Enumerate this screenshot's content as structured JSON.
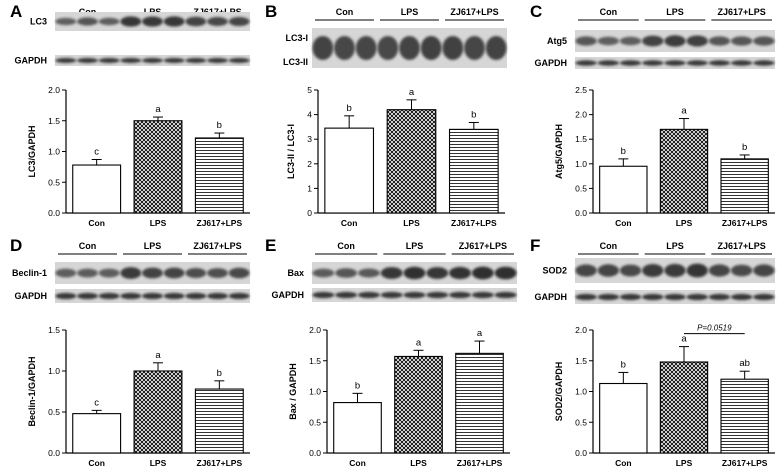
{
  "figure_title": "",
  "chart_data": [
    {
      "panel": "A",
      "type": "bar",
      "blot_rows": [
        "LC3",
        "GAPDH"
      ],
      "categories": [
        "Con",
        "LPS",
        "ZJ617+LPS"
      ],
      "values": [
        0.78,
        1.5,
        1.22
      ],
      "errors": [
        0.09,
        0.06,
        0.08
      ],
      "sig_letters": [
        "c",
        "a",
        "b"
      ],
      "ylabel": "LC3/GAPDH",
      "ylim": [
        0,
        2.0
      ],
      "yticks": [
        "0.0",
        "0.5",
        "1.0",
        "1.5",
        "2.0"
      ]
    },
    {
      "panel": "B",
      "type": "bar",
      "blot_rows": [
        "LC3-I",
        "LC3-II"
      ],
      "categories": [
        "Con",
        "LPS",
        "ZJ617+LPS"
      ],
      "values": [
        3.45,
        4.2,
        3.4
      ],
      "errors": [
        0.5,
        0.4,
        0.28
      ],
      "sig_letters": [
        "b",
        "a",
        "b"
      ],
      "ylabel": "LC3-II / LC3-I",
      "ylim": [
        0,
        5
      ],
      "yticks": [
        "0",
        "1",
        "2",
        "3",
        "4",
        "5"
      ]
    },
    {
      "panel": "C",
      "type": "bar",
      "blot_rows": [
        "Atg5",
        "GAPDH"
      ],
      "categories": [
        "Con",
        "LPS",
        "ZJ617+LPS"
      ],
      "values": [
        0.95,
        1.7,
        1.1
      ],
      "errors": [
        0.15,
        0.22,
        0.08
      ],
      "sig_letters": [
        "b",
        "a",
        "b"
      ],
      "ylabel": "Atg5/GAPDH",
      "ylim": [
        0,
        2.5
      ],
      "yticks": [
        "0.0",
        "0.5",
        "1.0",
        "1.5",
        "2.0",
        "2.5"
      ]
    },
    {
      "panel": "D",
      "type": "bar",
      "blot_rows": [
        "Beclin-1",
        "GAPDH"
      ],
      "categories": [
        "Con",
        "LPS",
        "ZJ617+LPS"
      ],
      "values": [
        0.48,
        1.0,
        0.78
      ],
      "errors": [
        0.04,
        0.1,
        0.1
      ],
      "sig_letters": [
        "c",
        "a",
        "b"
      ],
      "ylabel": "Beclin-1/GAPDH",
      "ylim": [
        0,
        1.5
      ],
      "yticks": [
        "0.0",
        "0.5",
        "1.0",
        "1.5"
      ]
    },
    {
      "panel": "E",
      "type": "bar",
      "blot_rows": [
        "Bax",
        "GAPDH"
      ],
      "categories": [
        "Con",
        "LPS",
        "ZJ617+LPS"
      ],
      "values": [
        0.82,
        1.57,
        1.62
      ],
      "errors": [
        0.15,
        0.1,
        0.2
      ],
      "sig_letters": [
        "b",
        "a",
        "a"
      ],
      "ylabel": "Bax / GAPDH",
      "ylim": [
        0,
        2.0
      ],
      "yticks": [
        "0.0",
        "0.5",
        "1.0",
        "1.5",
        "2.0"
      ]
    },
    {
      "panel": "F",
      "type": "bar",
      "blot_rows": [
        "SOD2",
        "GAPDH"
      ],
      "categories": [
        "Con",
        "LPS",
        "ZJ617+LPS"
      ],
      "values": [
        1.13,
        1.48,
        1.2
      ],
      "errors": [
        0.18,
        0.25,
        0.13
      ],
      "sig_letters": [
        "b",
        "a",
        "ab"
      ],
      "ylabel": "SOD2/GAPDH",
      "ylim": [
        0,
        2.0
      ],
      "yticks": [
        "0.0",
        "0.5",
        "1.0",
        "1.5",
        "2.0"
      ],
      "annotation": "P=0.0519"
    }
  ],
  "colors": {
    "bar_fill": "#ffffff",
    "bar_stroke": "#000000",
    "blot_band": "#1c1c1c",
    "blot_bg": "#d6d6d6"
  }
}
